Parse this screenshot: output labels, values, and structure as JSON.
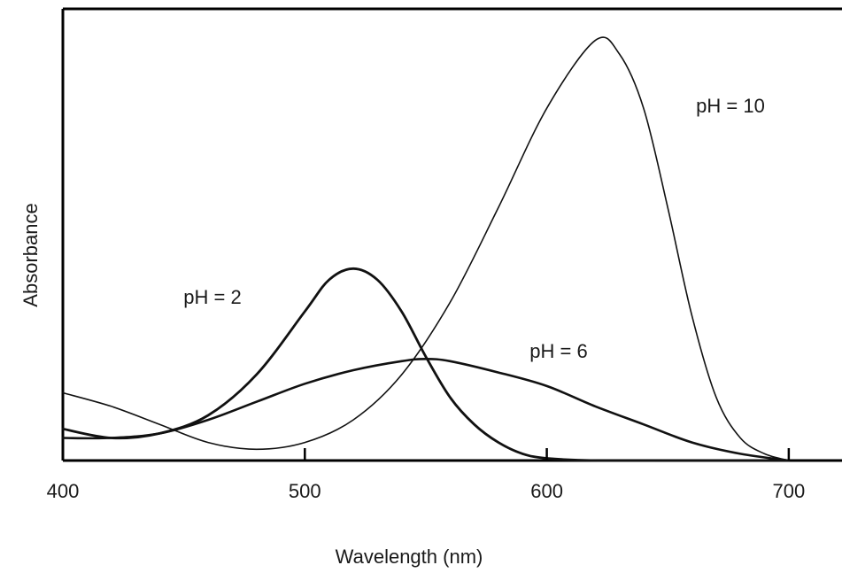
{
  "chart_data": {
    "type": "line",
    "title": "",
    "xlabel": "Wavelength (nm)",
    "ylabel": "Absorbance",
    "xlim": [
      400,
      722
    ],
    "ylim": [
      0,
      1
    ],
    "x_ticks": [
      400,
      500,
      600,
      700
    ],
    "x_tick_labels": [
      "400",
      "500",
      "600",
      "700"
    ],
    "y_tick_labels": [],
    "grid": false,
    "legend": "none",
    "annotations": [
      {
        "text": "pH = 2",
        "series": "pH = 2"
      },
      {
        "text": "pH = 6",
        "series": "pH = 6"
      },
      {
        "text": "pH = 10",
        "series": "pH = 10"
      }
    ],
    "series": [
      {
        "name": "pH = 2",
        "x": [
          400,
          420,
          440,
          460,
          480,
          500,
          510,
          520,
          530,
          540,
          550,
          560,
          570,
          580,
          590,
          600,
          620,
          650,
          700
        ],
        "y": [
          0.07,
          0.05,
          0.06,
          0.1,
          0.19,
          0.33,
          0.4,
          0.425,
          0.4,
          0.33,
          0.23,
          0.14,
          0.08,
          0.04,
          0.015,
          0.005,
          0.0,
          0.0,
          0.0
        ]
      },
      {
        "name": "pH = 6",
        "x": [
          400,
          420,
          440,
          460,
          480,
          500,
          520,
          540,
          550,
          560,
          580,
          600,
          620,
          640,
          660,
          680,
          700
        ],
        "y": [
          0.05,
          0.05,
          0.06,
          0.09,
          0.13,
          0.17,
          0.2,
          0.22,
          0.225,
          0.22,
          0.195,
          0.165,
          0.12,
          0.08,
          0.04,
          0.015,
          0.0
        ]
      },
      {
        "name": "pH = 10",
        "x": [
          400,
          420,
          440,
          460,
          480,
          500,
          520,
          540,
          560,
          580,
          600,
          620,
          630,
          640,
          650,
          660,
          670,
          680,
          690,
          700
        ],
        "y": [
          0.15,
          0.12,
          0.08,
          0.04,
          0.025,
          0.04,
          0.09,
          0.19,
          0.35,
          0.56,
          0.78,
          0.93,
          0.9,
          0.78,
          0.56,
          0.32,
          0.14,
          0.05,
          0.015,
          0.0
        ]
      }
    ]
  }
}
